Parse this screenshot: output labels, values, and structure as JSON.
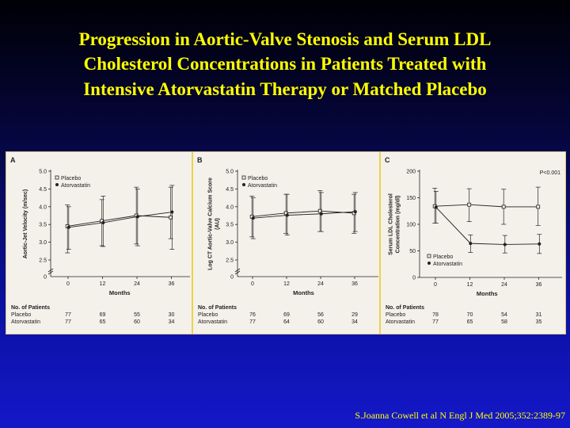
{
  "slide": {
    "title_lines": [
      "Progression in Aortic-Valve Stenosis and Serum LDL",
      "Cholesterol Concentrations in Patients Treated with",
      "Intensive Atorvastatin Therapy or Matched Placebo"
    ],
    "citation": "S.Joanna Cowell et al N Engl J Med 2005;352:2389-97"
  },
  "colors": {
    "background_top": "#000005",
    "background_bottom": "#1418c8",
    "title": "#ffff00",
    "panel_divider": "#e8d44a",
    "line": "#222222"
  },
  "chart_data": [
    {
      "panel": "A",
      "type": "line",
      "ylabel": "Aortic-Jet Velocity (m/sec)",
      "xlabel": "Months",
      "x": [
        0,
        12,
        24,
        36
      ],
      "ylim": [
        2.5,
        5.0
      ],
      "yticks": [
        "2.5",
        "3.0",
        "3.5",
        "4.0",
        "4.5",
        "5.0"
      ],
      "ytick_values": [
        2.5,
        3.0,
        3.5,
        4.0,
        4.5,
        5.0
      ],
      "y_zero_label": "0",
      "axis_break": true,
      "legend": "top-left",
      "series": [
        {
          "name": "Placebo",
          "marker": "open-square",
          "values": [
            3.45,
            3.6,
            3.75,
            3.7
          ],
          "err_low": [
            2.7,
            2.9,
            2.95,
            3.1
          ],
          "err_high": [
            4.05,
            4.2,
            4.55,
            4.55
          ]
        },
        {
          "name": "Atorvastatin",
          "marker": "filled-circle",
          "values": [
            3.42,
            3.55,
            3.72,
            3.85
          ],
          "err_low": [
            2.8,
            2.88,
            2.9,
            2.8
          ],
          "err_high": [
            4.0,
            4.3,
            4.5,
            4.6
          ]
        }
      ],
      "patients": {
        "header": "No. of Patients",
        "rows": [
          {
            "label": "Placebo",
            "counts": [
              "77",
              "69",
              "55",
              "30"
            ]
          },
          {
            "label": "Atorvastatin",
            "counts": [
              "77",
              "65",
              "60",
              "34"
            ]
          }
        ]
      }
    },
    {
      "panel": "B",
      "type": "line",
      "ylabel": "Log CT Aortic-Valve Calcium Score (AU)",
      "xlabel": "Months",
      "x": [
        0,
        12,
        24,
        36
      ],
      "ylim": [
        2.5,
        5.0
      ],
      "yticks": [
        "2.5",
        "3.0",
        "3.5",
        "4.0",
        "4.5",
        "5.0"
      ],
      "ytick_values": [
        2.5,
        3.0,
        3.5,
        4.0,
        4.5,
        5.0
      ],
      "y_zero_label": "0",
      "axis_break": true,
      "legend": "top-left",
      "series": [
        {
          "name": "Placebo",
          "marker": "open-square",
          "values": [
            3.72,
            3.82,
            3.88,
            3.82
          ],
          "err_low": [
            3.15,
            3.25,
            3.3,
            3.25
          ],
          "err_high": [
            4.3,
            4.35,
            4.45,
            4.35
          ]
        },
        {
          "name": "Atorvastatin",
          "marker": "filled-circle",
          "values": [
            3.68,
            3.76,
            3.8,
            3.86
          ],
          "err_low": [
            3.1,
            3.2,
            3.3,
            3.3
          ],
          "err_high": [
            4.25,
            4.35,
            4.4,
            4.4
          ]
        }
      ],
      "patients": {
        "header": "No. of Patients",
        "rows": [
          {
            "label": "Placebo",
            "counts": [
              "76",
              "69",
              "56",
              "29"
            ]
          },
          {
            "label": "Atorvastatin",
            "counts": [
              "77",
              "64",
              "60",
              "34"
            ]
          }
        ]
      }
    },
    {
      "panel": "C",
      "type": "line",
      "ylabel": "Serum LDL Cholesterol Concentration (mg/dl)",
      "xlabel": "Months",
      "x": [
        0,
        12,
        24,
        36
      ],
      "ylim": [
        0,
        200
      ],
      "yticks": [
        "0",
        "50",
        "100",
        "150",
        "200"
      ],
      "ytick_values": [
        0,
        50,
        100,
        150,
        200
      ],
      "axis_break": false,
      "annotation": "P<0.001",
      "legend": "bottom-left",
      "series": [
        {
          "name": "Placebo",
          "marker": "open-square",
          "values": [
            134,
            137,
            133,
            133
          ],
          "err_low": [
            102,
            105,
            100,
            98
          ],
          "err_high": [
            168,
            167,
            166,
            170
          ]
        },
        {
          "name": "Atorvastatin",
          "marker": "filled-circle",
          "values": [
            132,
            64,
            62,
            63
          ],
          "err_low": [
            102,
            47,
            46,
            45
          ],
          "err_high": [
            162,
            80,
            79,
            81
          ]
        }
      ],
      "patients": {
        "header": "No. of Patients",
        "rows": [
          {
            "label": "Placebo",
            "counts": [
              "78",
              "70",
              "54",
              "31"
            ]
          },
          {
            "label": "Atorvastatin",
            "counts": [
              "77",
              "65",
              "58",
              "35"
            ]
          }
        ]
      }
    }
  ]
}
